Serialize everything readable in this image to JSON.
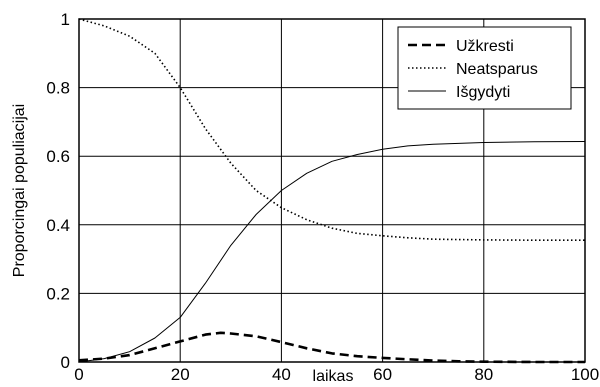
{
  "chart_data": {
    "type": "line",
    "xlabel": "laikas",
    "ylabel": "Proporcingai populiacijai",
    "xlim": [
      0,
      100
    ],
    "ylim": [
      0,
      1
    ],
    "xticks": [
      0,
      20,
      40,
      60,
      80,
      100
    ],
    "yticks": [
      0,
      0.2,
      0.4,
      0.6,
      0.8,
      1
    ],
    "xtick_labels": [
      "0",
      "20",
      "40",
      "60",
      "80",
      "100"
    ],
    "ytick_labels": [
      "0",
      "0.2",
      "0.4",
      "0.6",
      "0.8",
      "1"
    ],
    "grid": true,
    "legend_position": "top-right",
    "series": [
      {
        "name": "Užkresti",
        "style": "dashed",
        "color": "#000000",
        "x": [
          0,
          5,
          10,
          15,
          20,
          25,
          28,
          30,
          35,
          40,
          45,
          50,
          55,
          60,
          65,
          70,
          75,
          80,
          90,
          100
        ],
        "y": [
          0.005,
          0.01,
          0.02,
          0.04,
          0.06,
          0.08,
          0.085,
          0.083,
          0.075,
          0.058,
          0.04,
          0.025,
          0.017,
          0.012,
          0.008,
          0.004,
          0.002,
          0.001,
          0.0,
          0.0
        ]
      },
      {
        "name": "Neatsparus",
        "style": "dotted",
        "color": "#000000",
        "x": [
          0,
          5,
          10,
          15,
          20,
          25,
          30,
          35,
          40,
          45,
          50,
          55,
          60,
          65,
          70,
          80,
          90,
          100
        ],
        "y": [
          1.0,
          0.98,
          0.95,
          0.9,
          0.8,
          0.68,
          0.58,
          0.5,
          0.45,
          0.415,
          0.39,
          0.375,
          0.368,
          0.362,
          0.358,
          0.356,
          0.355,
          0.355
        ]
      },
      {
        "name": "Išgydyti",
        "style": "solid",
        "color": "#000000",
        "x": [
          0,
          5,
          10,
          15,
          20,
          25,
          30,
          35,
          40,
          45,
          50,
          55,
          60,
          65,
          70,
          80,
          90,
          100
        ],
        "y": [
          0.0,
          0.01,
          0.03,
          0.07,
          0.13,
          0.23,
          0.34,
          0.43,
          0.5,
          0.55,
          0.585,
          0.605,
          0.62,
          0.63,
          0.635,
          0.64,
          0.642,
          0.643
        ]
      }
    ]
  }
}
